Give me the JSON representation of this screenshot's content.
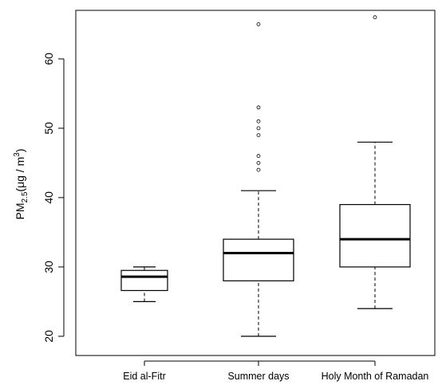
{
  "chart_data": {
    "type": "boxplot",
    "title": "",
    "xlabel": "",
    "ylabel": {
      "base": "PM",
      "subscript": "2.5",
      "open": "(μg / m",
      "superscript": "3",
      "close": ")"
    },
    "ylim": [
      19,
      67
    ],
    "yticks": [
      20,
      30,
      40,
      50,
      60
    ],
    "categories": [
      "Eid al-Fitr",
      "Summer days",
      "Holy Month of Ramadan"
    ],
    "boxes": [
      {
        "category": "Eid al-Fitr",
        "whisker_low": 25,
        "q1": 26.6,
        "median": 28.6,
        "q3": 29.5,
        "whisker_high": 30,
        "outliers": []
      },
      {
        "category": "Summer days",
        "whisker_low": 20,
        "q1": 28,
        "median": 32,
        "q3": 34,
        "whisker_high": 41,
        "outliers": [
          44,
          45,
          46,
          49,
          50,
          51,
          53,
          65
        ]
      },
      {
        "category": "Holy Month of Ramadan",
        "whisker_low": 24,
        "q1": 30,
        "median": 34,
        "q3": 39,
        "whisker_high": 48,
        "outliers": [
          66
        ]
      }
    ],
    "grid": false,
    "legend": "none",
    "colors": {
      "box_stroke": "#000000",
      "background": "#ffffff"
    }
  }
}
